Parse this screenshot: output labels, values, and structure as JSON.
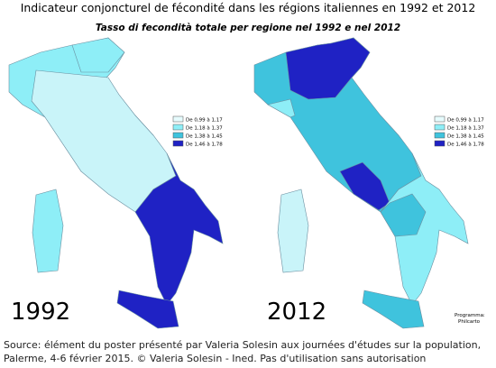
{
  "header": {
    "title": "Indicateur conjoncturel de fécondité dans les régions italiennes en 1992 et 2012",
    "subtitle": "Tasso di fecondità  totale per regione  nel 1992 e nel 2012"
  },
  "legend": [
    {
      "label": "De 0,99 à 1,17",
      "color": "#e6fbfd"
    },
    {
      "label": "De 1,18 à 1,37",
      "color": "#8eeef7"
    },
    {
      "label": "De 1,38 à 1,45",
      "color": "#3fc3dd"
    },
    {
      "label": "De 1,46 à 1,78",
      "color": "#1f22c4"
    }
  ],
  "maps": [
    {
      "year": "1992"
    },
    {
      "year": "2012"
    }
  ],
  "credit": {
    "line1": "Programma:",
    "line2": "Philcarto"
  },
  "source": {
    "line1": "Source: élément du poster présenté par Valeria Solesin aux journées d'études sur la population,",
    "line2": "Palerme, 4-6 février 2015. © Valeria Solesin - Ined. Pas d'utilisation sans autorisation"
  }
}
